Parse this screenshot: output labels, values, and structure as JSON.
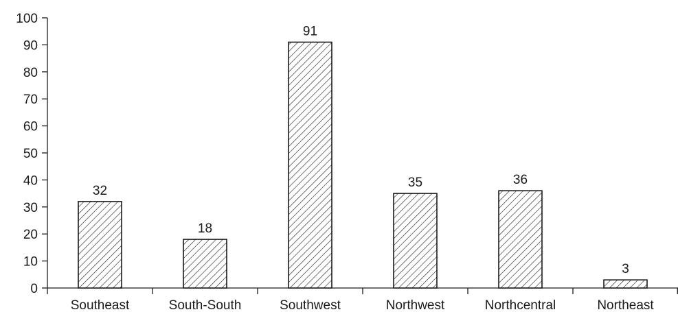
{
  "chart_data": {
    "type": "bar",
    "title": "",
    "xlabel": "",
    "ylabel": "",
    "categories": [
      "Southeast",
      "South-South",
      "Southwest",
      "Northwest",
      "Northcentral",
      "Northeast"
    ],
    "values": [
      32,
      18,
      91,
      35,
      36,
      3
    ],
    "ylim": [
      0,
      100
    ],
    "yticks": [
      0,
      10,
      20,
      30,
      40,
      50,
      60,
      70,
      80,
      90,
      100
    ],
    "grid": false,
    "legend": "none",
    "bar_fill": "hatched",
    "colors": {
      "stroke": "#1a1a1a",
      "fill": "#ffffff"
    }
  }
}
